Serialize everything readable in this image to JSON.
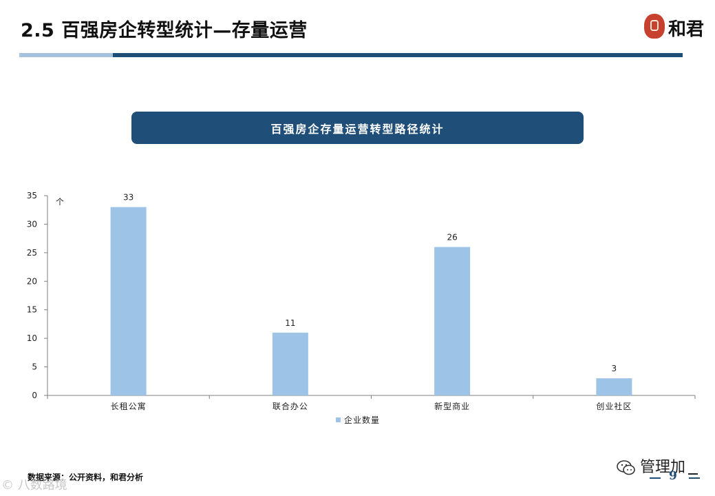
{
  "slide": {
    "title": "2.5 百强房企转型统计—存量运营",
    "logo_text": "和君",
    "banner": "百强房企存量运营转型路径统计",
    "source": "数据来源：公开资料，和君分析",
    "page_number": "9",
    "watermark_left": "© 八数路境",
    "footer_brand": "管理加",
    "colors": {
      "accent": "#1f4e79",
      "accent_light": "#a5c1dc",
      "bar": "#9dc3e6",
      "seal": "#c8412f"
    }
  },
  "chart_data": {
    "type": "bar",
    "categories": [
      "长租公寓",
      "联合办公",
      "新型商业",
      "创业社区"
    ],
    "series": [
      {
        "name": "企业数量",
        "values": [
          33,
          11,
          26,
          3
        ]
      }
    ],
    "unit_label": "个",
    "ylim": [
      0,
      35
    ],
    "yticks": [
      0,
      5,
      10,
      15,
      20,
      25,
      30,
      35
    ],
    "data_labels": true,
    "grid": false,
    "legend": "bottom"
  }
}
